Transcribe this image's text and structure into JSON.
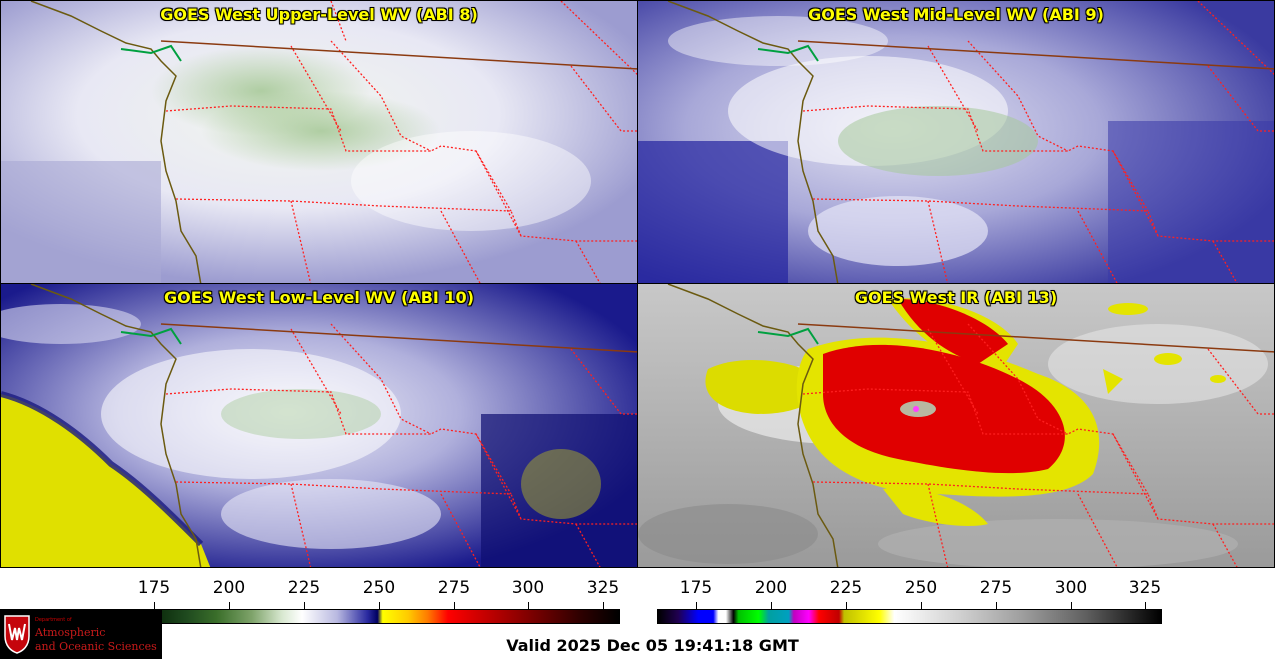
{
  "panels": [
    {
      "title": "GOES West Upper-Level WV (ABI 8)"
    },
    {
      "title": "GOES West Mid-Level WV (ABI 9)"
    },
    {
      "title": "GOES West Low-Level WV (ABI 10)"
    },
    {
      "title": "GOES West IR (ABI 13)"
    }
  ],
  "colorbars": {
    "left_ticks": [
      "175",
      "200",
      "225",
      "250",
      "275",
      "300",
      "325"
    ],
    "right_ticks": [
      "175",
      "200",
      "225",
      "250",
      "275",
      "300",
      "325"
    ]
  },
  "logo": {
    "dept": "Department of",
    "line1": "Atmospheric",
    "line2": "and Oceanic Sciences"
  },
  "valid_time": "Valid 2025 Dec 05 19:41:18 GMT",
  "colors": {
    "title": "#ffff00",
    "state_borders": "#ff2020",
    "coast": "#6b5a10",
    "national_border": "#8b3a10"
  }
}
